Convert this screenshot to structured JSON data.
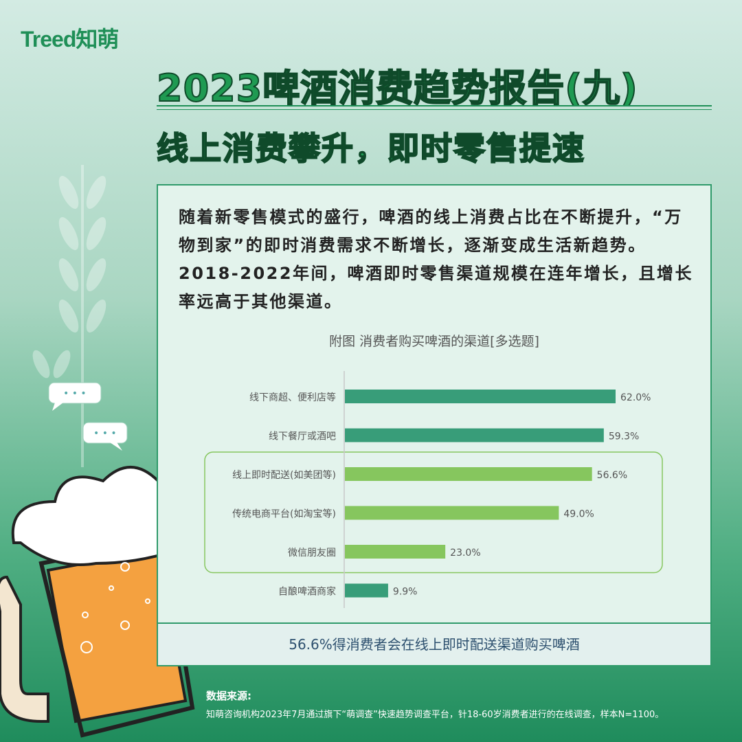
{
  "logo": "Treed知萌",
  "title": "2023啤酒消费趋势报告(九)",
  "subtitle": "线上消费攀升，即时零售提速",
  "intro": "随着新零售模式的盛行，啤酒的线上消费占比在不断提升，“万物到家”的即时消费需求不断增长，逐渐变成生活新趋势。2018-2022年间，啤酒即时零售渠道规模在连年增长，且增长率远高于其他渠道。",
  "highlight": "56.6%得消费者会在线上即时配送渠道购买啤酒",
  "source": {
    "label": "数据来源:",
    "text": "知萌咨询机构2023年7月通过旗下“萌调查”快速趋势调查平台，针18-60岁消费者进行的在线调查，样本N=1100。"
  },
  "colors": {
    "dark_bar": "#389d79",
    "light_bar": "#86c65e",
    "accent": "#1f8f57"
  },
  "chart_data": {
    "type": "bar",
    "orientation": "horizontal",
    "title": "附图 消费者购买啤酒的渠道[多选题]",
    "categories": [
      "线下商超、便利店等",
      "线下餐厅或酒吧",
      "线上即时配送(如美团等)",
      "传统电商平台(如淘宝等)",
      "微信朋友圈",
      "自酿啤酒商家"
    ],
    "values": [
      62.0,
      59.3,
      56.6,
      49.0,
      23.0,
      9.9
    ],
    "labels": [
      "62.0%",
      "59.3%",
      "56.6%",
      "49.0%",
      "23.0%",
      "9.9%"
    ],
    "highlighted": [
      false,
      false,
      true,
      true,
      true,
      false
    ],
    "xlim": [
      0,
      62
    ]
  }
}
